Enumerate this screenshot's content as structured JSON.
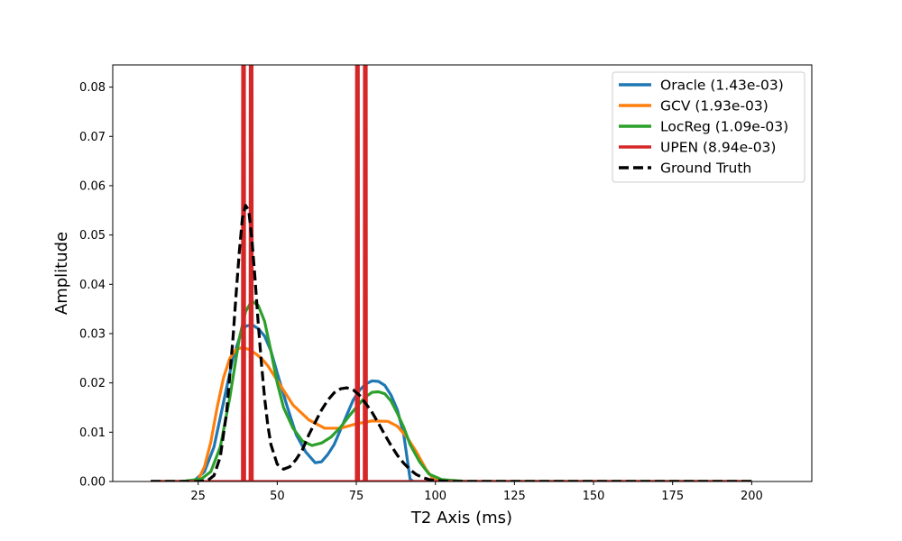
{
  "chart_data": {
    "type": "line",
    "title": "",
    "xlabel": "T2 Axis (ms)",
    "ylabel": "Amplitude",
    "xlim": [
      -2,
      219
    ],
    "ylim": [
      0,
      0.0845
    ],
    "x_ticks": [
      25,
      50,
      75,
      100,
      125,
      150,
      175,
      200
    ],
    "y_ticks": [
      0.0,
      0.01,
      0.02,
      0.03,
      0.04,
      0.05,
      0.06,
      0.07,
      0.08
    ],
    "y_tick_decimals": 2,
    "grid": false,
    "legend_position": "top-right",
    "series": [
      {
        "name": "Oracle (1.43e-03)",
        "color": "#1f77b4",
        "dash": "solid",
        "x": [
          10,
          20,
          24,
          27,
          30,
          33,
          36,
          38,
          40,
          42,
          44,
          46,
          48,
          50,
          53,
          56,
          59,
          62,
          64,
          66,
          68,
          70,
          72,
          74,
          76,
          78,
          80,
          82,
          84,
          86,
          88,
          90,
          91,
          92,
          93,
          100,
          120,
          150,
          200
        ],
        "y": [
          0,
          0,
          0.0003,
          0.002,
          0.007,
          0.016,
          0.025,
          0.029,
          0.0315,
          0.0318,
          0.031,
          0.0295,
          0.0265,
          0.022,
          0.0155,
          0.0095,
          0.006,
          0.0038,
          0.004,
          0.0055,
          0.0075,
          0.0105,
          0.0135,
          0.0165,
          0.0185,
          0.0198,
          0.0204,
          0.0203,
          0.0195,
          0.0175,
          0.0145,
          0.0095,
          0.005,
          0.0005,
          0,
          0,
          0,
          0,
          0
        ]
      },
      {
        "name": "GCV (1.93e-03)",
        "color": "#ff7f0e",
        "dash": "solid",
        "x": [
          10,
          20,
          25,
          27,
          29,
          31,
          33,
          35,
          37,
          39,
          41,
          43,
          45,
          47,
          50,
          55,
          60,
          65,
          70,
          75,
          80,
          85,
          88,
          91,
          94,
          97,
          99,
          102,
          110,
          150,
          200
        ],
        "y": [
          0,
          0,
          0.0003,
          0.003,
          0.008,
          0.015,
          0.021,
          0.025,
          0.0268,
          0.0272,
          0.0268,
          0.026,
          0.025,
          0.0235,
          0.0205,
          0.0155,
          0.0125,
          0.0108,
          0.0108,
          0.0117,
          0.0123,
          0.0122,
          0.0112,
          0.009,
          0.006,
          0.0025,
          0.0008,
          0.0002,
          0,
          0,
          0
        ]
      },
      {
        "name": "LocReg (1.09e-03)",
        "color": "#2ca02c",
        "dash": "solid",
        "x": [
          10,
          20,
          26,
          29,
          32,
          35,
          38,
          40,
          42,
          44,
          46,
          48,
          50,
          52,
          55,
          58,
          61,
          64,
          67,
          70,
          73,
          76,
          78,
          80,
          82,
          84,
          86,
          88,
          90,
          92,
          95,
          98,
          102,
          110,
          150,
          200
        ],
        "y": [
          0,
          0,
          0.0005,
          0.002,
          0.007,
          0.017,
          0.029,
          0.0345,
          0.0366,
          0.0357,
          0.0325,
          0.0265,
          0.02,
          0.015,
          0.0108,
          0.0082,
          0.0073,
          0.0078,
          0.009,
          0.011,
          0.0135,
          0.0158,
          0.0172,
          0.0181,
          0.0182,
          0.0178,
          0.0163,
          0.0138,
          0.011,
          0.0075,
          0.004,
          0.0015,
          0.0004,
          0,
          0,
          0
        ]
      },
      {
        "name": "UPEN (8.94e-03)",
        "color": "#d62728",
        "dash": "solid",
        "x": [
          10,
          39.0,
          39.1,
          39.6,
          39.7,
          41.4,
          41.5,
          42.0,
          42.1,
          75.0,
          75.1,
          75.6,
          75.7,
          77.5,
          77.6,
          78.1,
          78.2,
          200
        ],
        "y": [
          0,
          0,
          0.12,
          0.12,
          0,
          0,
          0.12,
          0.12,
          0,
          0,
          0.12,
          0.12,
          0,
          0,
          0.12,
          0.12,
          0,
          0
        ]
      },
      {
        "name": "Ground Truth",
        "color": "#000000",
        "dash": "dashed",
        "x": [
          10,
          25,
          28,
          30,
          32,
          34,
          36,
          37,
          38,
          39,
          40,
          41,
          42,
          43,
          44,
          45,
          46,
          47,
          48,
          50,
          52,
          54,
          56,
          58,
          60,
          62,
          64,
          66,
          68,
          70,
          72,
          74,
          76,
          78,
          80,
          82,
          84,
          86,
          88,
          90,
          92,
          94,
          96,
          98,
          100,
          105,
          110,
          150,
          200
        ],
        "y": [
          0,
          0,
          0.0002,
          0.0012,
          0.005,
          0.014,
          0.029,
          0.038,
          0.0465,
          0.0535,
          0.056,
          0.055,
          0.049,
          0.041,
          0.032,
          0.024,
          0.017,
          0.0115,
          0.0075,
          0.0035,
          0.0025,
          0.003,
          0.0045,
          0.0065,
          0.0095,
          0.012,
          0.0145,
          0.0165,
          0.018,
          0.0188,
          0.019,
          0.0186,
          0.0175,
          0.0158,
          0.014,
          0.0118,
          0.0095,
          0.0073,
          0.0053,
          0.0037,
          0.0024,
          0.0014,
          0.0008,
          0.0004,
          0.0002,
          0,
          0,
          0,
          0
        ]
      }
    ]
  }
}
